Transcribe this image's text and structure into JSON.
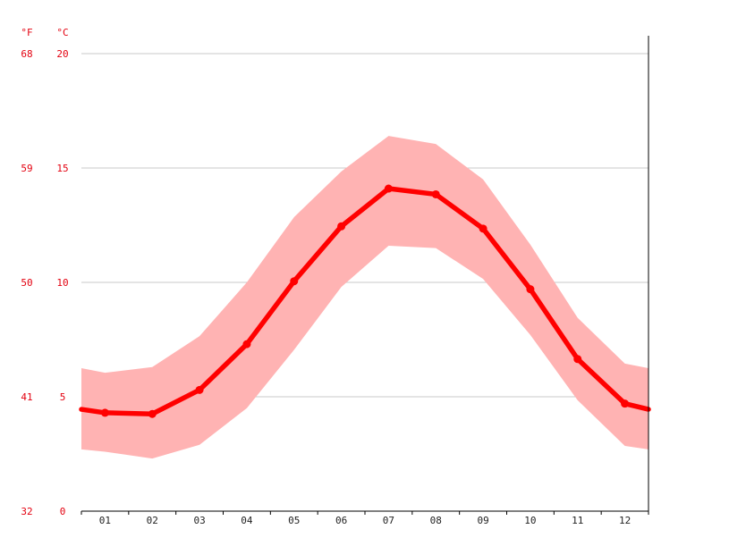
{
  "chart_data": {
    "type": "line",
    "title": "",
    "xlabel": "",
    "ylabel": "",
    "units": {
      "fahrenheit": "°F",
      "celsius": "°C"
    },
    "categories": [
      "01",
      "02",
      "03",
      "04",
      "05",
      "06",
      "07",
      "08",
      "09",
      "10",
      "11",
      "12"
    ],
    "ylim": [
      0,
      20
    ],
    "yticks_c": [
      "0",
      "5",
      "10",
      "15",
      "20"
    ],
    "yticks_f": [
      "32",
      "41",
      "50",
      "59",
      "68"
    ],
    "grid": true,
    "series": [
      {
        "values": [
          4.3,
          4.25,
          5.3,
          7.3,
          10.05,
          12.45,
          14.1,
          13.85,
          12.35,
          9.7,
          6.65,
          4.7
        ],
        "color": "#ff0000"
      }
    ],
    "band": {
      "color": "#ffb3b3",
      "upper": [
        6.05,
        6.3,
        7.65,
        10.0,
        12.85,
        14.85,
        16.4,
        16.05,
        14.5,
        11.65,
        8.45,
        6.45
      ],
      "lower": [
        2.6,
        2.3,
        2.9,
        4.5,
        7.05,
        9.8,
        11.6,
        11.5,
        10.15,
        7.7,
        4.85,
        2.85
      ],
      "edge_start": {
        "upper": 6.25,
        "lower": 2.7
      },
      "edge_end": {
        "upper": 6.25,
        "lower": 2.7
      }
    },
    "edge_values": {
      "start": 4.45,
      "end": 4.45
    }
  }
}
